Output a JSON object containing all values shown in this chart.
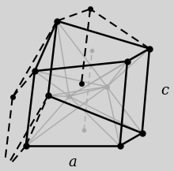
{
  "bg_color": "#d4d4d4",
  "label_a": "a",
  "label_c": "c",
  "label_fontsize": 13,
  "solid_color": "#000000",
  "dashed_color": "#000000",
  "gray_color": "#aaaaaa",
  "dot_color": "#000000",
  "dot_size": 5,
  "gray_dot_size": 4,
  "linewidth_solid": 1.8,
  "linewidth_dashed": 1.5,
  "linewidth_gray": 1.0,
  "dash_pattern": [
    5,
    3
  ]
}
